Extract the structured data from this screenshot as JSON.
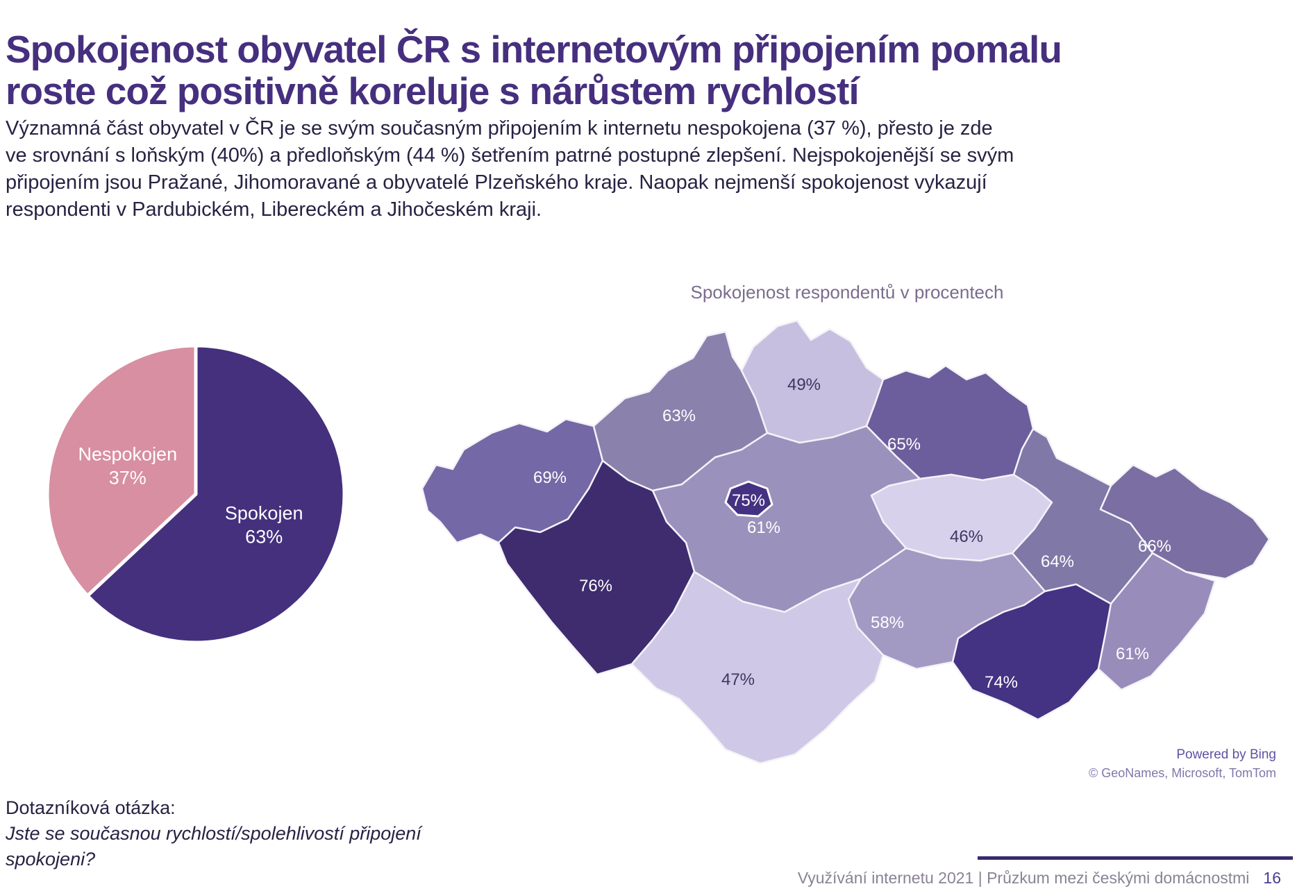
{
  "page": {
    "title_lines": [
      "Spokojenost obyvatel ČR s internetovým připojením pomalu",
      "roste což positivně koreluje s nárůstem rychlostí"
    ],
    "intro_lines": [
      "Významná část obyvatel v ČR je se svým současným připojením k internetu nespokojena (37 %), přesto je zde",
      "ve srovnání s loňským (40%) a předloňským (44 %) šetřením patrné postupné zlepšení. Nejspokojenější se svým",
      "připojením jsou Pražané, Jihomoravané a obyvatelé Plzeňského kraje. Naopak nejmenší spokojenost vykazují",
      "respondenti v Pardubickém, Libereckém a Jihočeském kraji."
    ],
    "question_label": "Dotazníková otázka:",
    "question_text": "Jste se současnou rychlostí/spolehlivostí připojení spokojeni?",
    "footer_text": "Využívání internetu 2021 | Průzkum mezi českými domácnostmi",
    "page_number": "16"
  },
  "map_attribution": {
    "powered_by": "Powered by Bing",
    "copyright": "© GeoNames, Microsoft, TomTom"
  },
  "colors": {
    "title": "#462f7e",
    "body_text": "#262243",
    "map_title": "#7b6c8e",
    "footer_text": "#8a8295",
    "footer_page_number": "#4d3a92",
    "footer_accent_line": "#3a296e",
    "pie_spokojen": "#45307e",
    "pie_nespokojen": "#d78fa1"
  },
  "chart_data": [
    {
      "type": "pie",
      "title": "",
      "start_angle_deg": 0,
      "direction": "clockwise",
      "slices": [
        {
          "label": "Spokojen",
          "value": 63,
          "display": "Spokojen 63%",
          "color": "#45307e",
          "text_color": "#ffffff"
        },
        {
          "label": "Nespokojen",
          "value": 37,
          "display": "Nespokojen 37%",
          "color": "#d78fa1",
          "text_color": "#ffffff"
        }
      ]
    },
    {
      "type": "choropleth",
      "title": "Spokojenost respondentů v procentech",
      "unit": "%",
      "regions": [
        {
          "region": "Karlovarský kraj",
          "value": 69,
          "label": "69%",
          "color": "#7568a6",
          "label_color": "#ffffff"
        },
        {
          "region": "Ústecký kraj",
          "value": 63,
          "label": "63%",
          "color": "#8b81ad",
          "label_color": "#ffffff"
        },
        {
          "region": "Liberecký kraj",
          "value": 49,
          "label": "49%",
          "color": "#c7bfe0",
          "label_color": "#3f3763"
        },
        {
          "region": "Královéhradecký kraj",
          "value": 65,
          "label": "65%",
          "color": "#6c5e9c",
          "label_color": "#ffffff"
        },
        {
          "region": "Pardubický kraj",
          "value": 46,
          "label": "46%",
          "color": "#d7d1ec",
          "label_color": "#3f3763"
        },
        {
          "region": "Středočeský kraj",
          "value": 61,
          "label": "61%",
          "color": "#9a92bc",
          "label_color": "#ffffff"
        },
        {
          "region": "Praha",
          "value": 75,
          "label": "75%",
          "color": "#453181",
          "label_color": "#ffffff"
        },
        {
          "region": "Plzeňský kraj",
          "value": 76,
          "label": "76%",
          "color": "#3e2c6f",
          "label_color": "#ffffff"
        },
        {
          "region": "Jihočeský kraj",
          "value": 47,
          "label": "47%",
          "color": "#cfc8e6",
          "label_color": "#3f3763"
        },
        {
          "region": "Vysočina",
          "value": 58,
          "label": "58%",
          "color": "#a29ac2",
          "label_color": "#ffffff"
        },
        {
          "region": "Jihomoravský kraj",
          "value": 74,
          "label": "74%",
          "color": "#443283",
          "label_color": "#ffffff"
        },
        {
          "region": "Olomoucký kraj",
          "value": 64,
          "label": "64%",
          "color": "#8078a7",
          "label_color": "#ffffff"
        },
        {
          "region": "Zlínský kraj",
          "value": 61,
          "label": "61%",
          "color": "#978cba",
          "label_color": "#ffffff"
        },
        {
          "region": "Moravskoslezský kraj",
          "value": 66,
          "label": "66%",
          "color": "#7a6ea2",
          "label_color": "#ffffff"
        }
      ]
    }
  ]
}
